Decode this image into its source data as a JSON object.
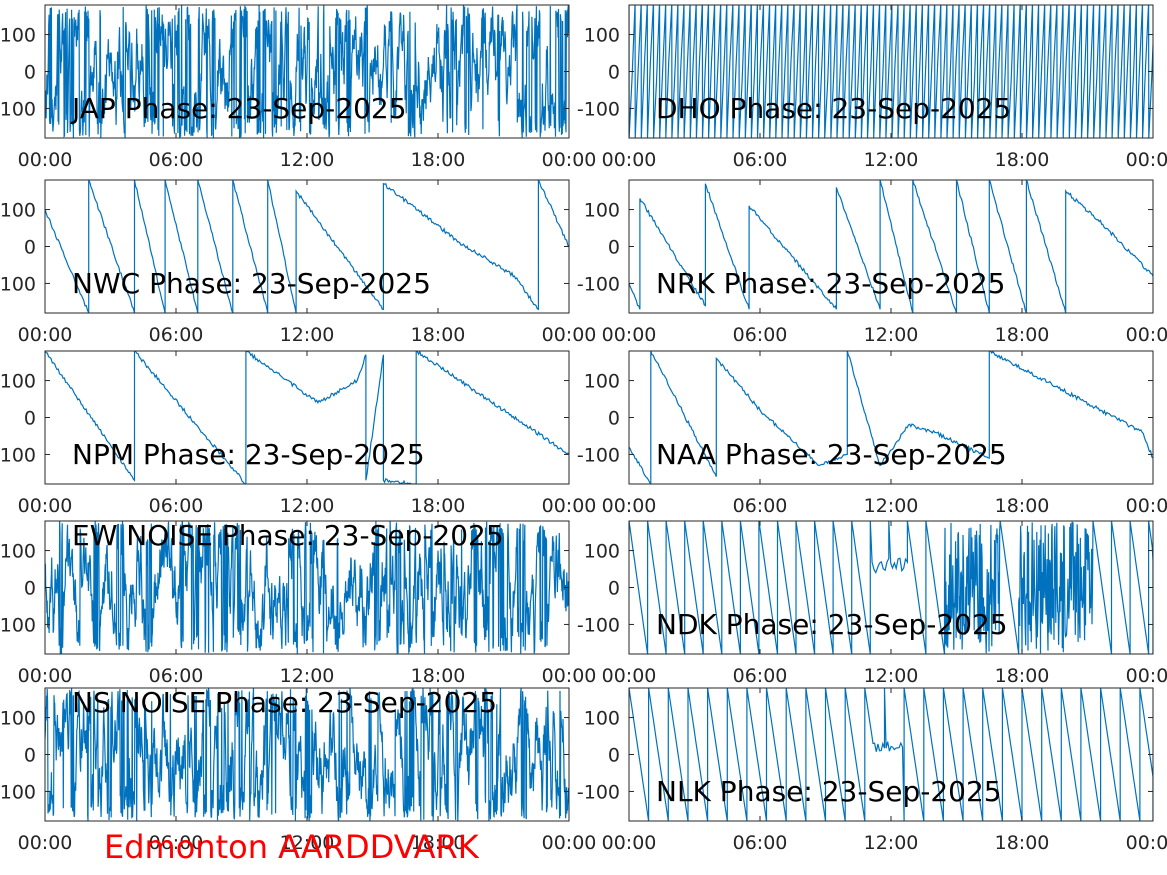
{
  "footer": {
    "text": "Edmonton AARDDVARK",
    "color": "#ff0000"
  },
  "style": {
    "line_color": "#0072bd",
    "axis_color": "#262626"
  },
  "chart_data": [
    {
      "type": "line",
      "title": "JAP Phase: 23-Sep-2025",
      "x_tick_labels": [
        "00:00",
        "06:00",
        "12:00",
        "18:00",
        "00:00"
      ],
      "y_ticks": [
        -100,
        0,
        100
      ],
      "y_tick_labels": [
        "-100",
        "0",
        "100"
      ],
      "xlim": [
        0,
        24
      ],
      "ylim": [
        -180,
        180
      ],
      "character": "dense-noise",
      "seed": 11
    },
    {
      "type": "line",
      "title": "DHO Phase: 23-Sep-2025",
      "x_tick_labels": [
        "00:00",
        "06:00",
        "12:00",
        "18:00",
        "00:00"
      ],
      "y_ticks": [
        -100,
        0,
        100
      ],
      "y_tick_labels": [
        "-100",
        "0",
        "100"
      ],
      "xlim": [
        0,
        24
      ],
      "ylim": [
        -180,
        180
      ],
      "character": "rapid-wrap",
      "seed": 12
    },
    {
      "type": "line",
      "title": "NWC Phase: 23-Sep-2025",
      "x_tick_labels": [
        "00:00",
        "06:00",
        "12:00",
        "18:00",
        "00:00"
      ],
      "y_ticks": [
        -100,
        0,
        100
      ],
      "y_tick_labels": [
        "-100",
        "0",
        "100"
      ],
      "xlim": [
        0,
        24
      ],
      "ylim": [
        -180,
        180
      ],
      "character": "segments",
      "seed": 13,
      "x": [
        0,
        2.0,
        2.0,
        4.1,
        4.1,
        5.5,
        5.5,
        7.0,
        7.0,
        8.6,
        8.6,
        10.2,
        10.2,
        11.5,
        11.5,
        15.5,
        15.5,
        19.0,
        21.5,
        22.6,
        22.6,
        24.0
      ],
      "y": [
        100,
        -180,
        180,
        -180,
        180,
        -180,
        180,
        -180,
        180,
        -180,
        180,
        -180,
        180,
        -180,
        150,
        -170,
        170,
        10,
        -80,
        -170,
        180,
        0
      ]
    },
    {
      "type": "line",
      "title": "NRK Phase: 23-Sep-2025",
      "x_tick_labels": [
        "00:00",
        "06:00",
        "12:00",
        "18:00",
        "00:00"
      ],
      "y_ticks": [
        -100,
        0,
        100
      ],
      "y_tick_labels": [
        "-100",
        "0",
        "100"
      ],
      "xlim": [
        0,
        24
      ],
      "ylim": [
        -180,
        180
      ],
      "character": "segments",
      "seed": 14,
      "x": [
        0,
        0.5,
        0.5,
        3.5,
        3.5,
        5.5,
        5.5,
        9.5,
        9.5,
        11.5,
        11.5,
        13.0,
        13.0,
        15.0,
        15.0,
        16.5,
        16.5,
        18.2,
        18.2,
        20.0,
        20.0,
        21.7,
        21.7,
        24.0
      ],
      "y": [
        -100,
        -170,
        130,
        -160,
        170,
        -170,
        110,
        -170,
        160,
        -170,
        180,
        -180,
        180,
        -180,
        180,
        -180,
        180,
        -180,
        180,
        -180,
        150,
        60,
        60,
        -80
      ]
    },
    {
      "type": "line",
      "title": "NPM Phase: 23-Sep-2025",
      "x_tick_labels": [
        "00:00",
        "06:00",
        "12:00",
        "18:00",
        "00:00"
      ],
      "y_ticks": [
        -100,
        0,
        100
      ],
      "y_tick_labels": [
        "-100",
        "0",
        "100"
      ],
      "xlim": [
        0,
        24
      ],
      "ylim": [
        -180,
        180
      ],
      "character": "segments",
      "seed": 15,
      "x": [
        0,
        4.1,
        4.1,
        9.2,
        9.2,
        12.5,
        14.3,
        14.7,
        14.7,
        15.5,
        15.5,
        17.0,
        17.0,
        24.0
      ],
      "y": [
        180,
        -170,
        180,
        -180,
        180,
        40,
        100,
        170,
        -170,
        170,
        -170,
        -180,
        180,
        -100
      ]
    },
    {
      "type": "line",
      "title": "NAA Phase: 23-Sep-2025",
      "x_tick_labels": [
        "00:00",
        "06:00",
        "12:00",
        "18:00",
        "00:00"
      ],
      "y_ticks": [
        -100,
        0,
        100
      ],
      "y_tick_labels": [
        "-100",
        "0",
        "100"
      ],
      "xlim": [
        0,
        24
      ],
      "ylim": [
        -180,
        180
      ],
      "character": "segments",
      "seed": 16,
      "x": [
        0,
        1.0,
        1.0,
        4.0,
        4.0,
        6.0,
        6.0,
        8.7,
        10.0,
        10.0,
        11.5,
        12.8,
        14.0,
        16.5,
        16.5,
        23.5,
        24.0
      ],
      "y": [
        -80,
        -180,
        180,
        -160,
        160,
        20,
        20,
        -130,
        -100,
        180,
        -130,
        -20,
        -40,
        -110,
        180,
        -40,
        -110
      ]
    },
    {
      "type": "line",
      "title": "EW NOISE Phase: 23-Sep-2025",
      "x_tick_labels": [
        "00:00",
        "06:00",
        "12:00",
        "18:00",
        "00:00"
      ],
      "y_ticks": [
        -100,
        0,
        100
      ],
      "y_tick_labels": [
        "-100",
        "0",
        "100"
      ],
      "xlim": [
        0,
        24
      ],
      "ylim": [
        -180,
        180
      ],
      "character": "dense-noise",
      "seed": 17
    },
    {
      "type": "line",
      "title": "NDK Phase: 23-Sep-2025",
      "x_tick_labels": [
        "00:00",
        "06:00",
        "12:00",
        "18:00",
        "00:00"
      ],
      "y_ticks": [
        -100,
        0,
        100
      ],
      "y_tick_labels": [
        "-100",
        "0",
        "100"
      ],
      "xlim": [
        0,
        24
      ],
      "ylim": [
        -180,
        180
      ],
      "character": "wrap-with-noise",
      "seed": 18
    },
    {
      "type": "line",
      "title": "NS NOISE Phase: 23-Sep-2025",
      "x_tick_labels": [
        "00:00",
        "06:00",
        "12:00",
        "18:00",
        "00:00"
      ],
      "y_ticks": [
        -100,
        0,
        100
      ],
      "y_tick_labels": [
        "-100",
        "0",
        "100"
      ],
      "xlim": [
        0,
        24
      ],
      "ylim": [
        -180,
        180
      ],
      "character": "dense-noise",
      "seed": 19
    },
    {
      "type": "line",
      "title": "NLK Phase: 23-Sep-2025",
      "x_tick_labels": [
        "00:00",
        "06:00",
        "12:00",
        "18:00",
        "00:00"
      ],
      "y_ticks": [
        -100,
        0,
        100
      ],
      "y_tick_labels": [
        "-100",
        "0",
        "100"
      ],
      "xlim": [
        0,
        24
      ],
      "ylim": [
        -180,
        180
      ],
      "character": "sawtooth",
      "seed": 20
    }
  ]
}
